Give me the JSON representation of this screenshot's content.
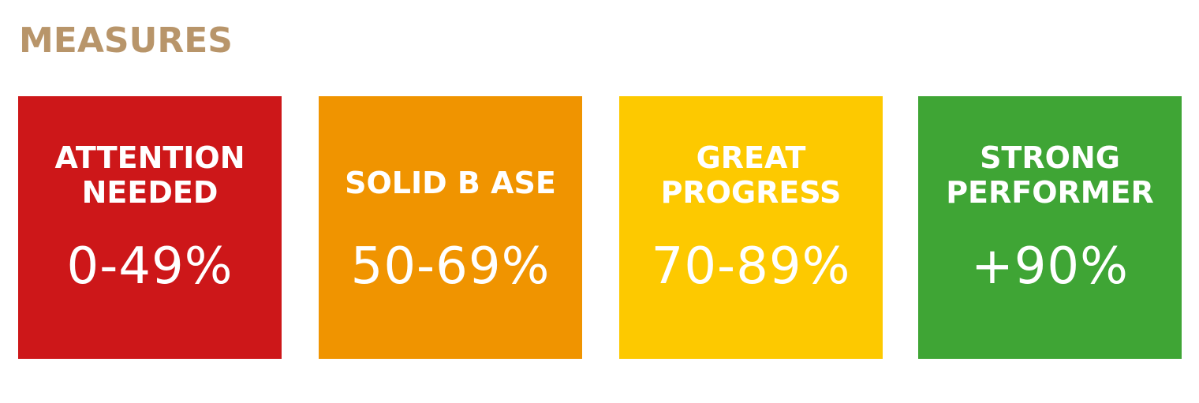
{
  "title": "MEASURES",
  "colors": {
    "title": "#b8956a",
    "red": "#cd1719",
    "orange": "#f09400",
    "yellow": "#fdc900",
    "green": "#3fa535",
    "text": "#ffffff"
  },
  "tiles": [
    {
      "label_line1": "ATTENTION",
      "label_line2": "NEEDED",
      "range": "0-49%",
      "color": "#cd1719"
    },
    {
      "label_line1": "SOLID B ASE",
      "range": "50-69%",
      "color": "#f09400"
    },
    {
      "label_line1": "GREAT",
      "label_line2": "PROGRESS",
      "range": "70-89%",
      "color": "#fdc900"
    },
    {
      "label_line1": "STRONG",
      "label_line2": "PERFORMER",
      "range": "+90%",
      "color": "#3fa535"
    }
  ]
}
